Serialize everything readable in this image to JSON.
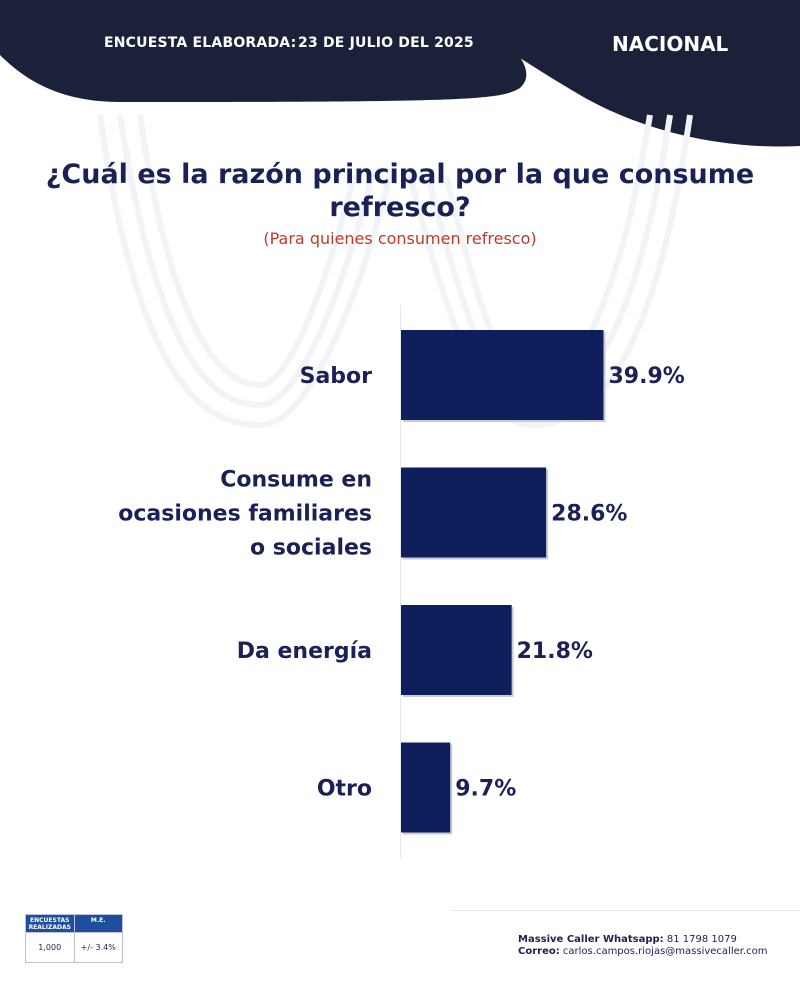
{
  "header": {
    "survey_label": "ENCUESTA ELABORADA:",
    "survey_date": "23 DE JULIO DEL 2025",
    "scope": "NACIONAL",
    "color": "#1b2139"
  },
  "question": {
    "title": "¿Cuál es la razón principal por la que consume refresco?",
    "subtitle": "(Para quienes consumen refresco)",
    "subtitle_color": "#c0392b"
  },
  "chart_data": {
    "type": "bar",
    "orientation": "horizontal",
    "categories": [
      [
        "Sabor"
      ],
      [
        "Consume en",
        "ocasiones familiares",
        "o sociales"
      ],
      [
        "Da energía"
      ],
      [
        "Otro"
      ]
    ],
    "values": [
      39.9,
      28.6,
      21.8,
      9.7
    ],
    "value_labels": [
      "39.9%",
      "28.6%",
      "21.8%",
      "9.7%"
    ],
    "bar_color": "#0f1f5c",
    "xlim": [
      0,
      40
    ]
  },
  "footer": {
    "table": {
      "headers": [
        "ENCUESTAS REALIZADAS",
        "M.E."
      ],
      "values": [
        "1,000",
        "+/- 3.4%"
      ]
    },
    "whatsapp_label": "Massive Caller Whatsapp:",
    "whatsapp_value": "81 1798 1079",
    "email_label": "Correo:",
    "email_value": "carlos.campos.riojas@massivecaller.com"
  }
}
